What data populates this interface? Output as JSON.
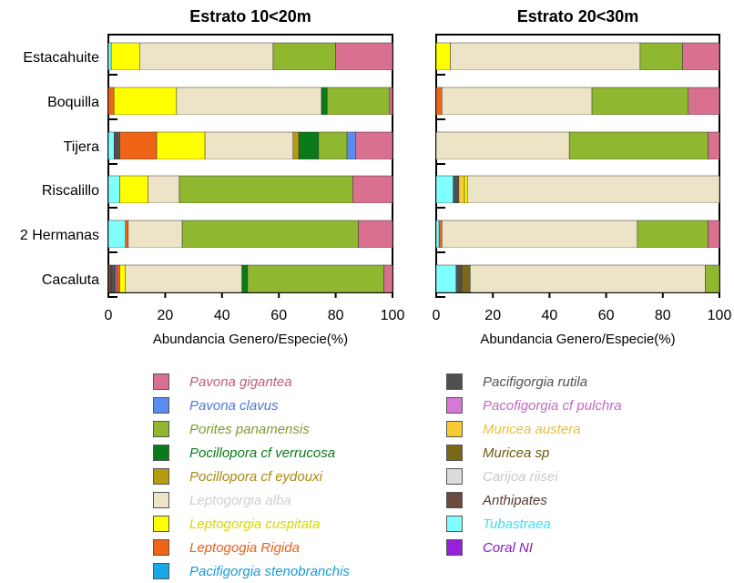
{
  "chart_data": [
    {
      "type": "bar",
      "orientation": "horizontal",
      "stacked": true,
      "title": "Estrato 10<20m",
      "xlabel": "Abundancia Genero/Especie(%)",
      "ylabel": "",
      "xlim": [
        0,
        100
      ],
      "xticks": [
        "0",
        "20",
        "40",
        "60",
        "80",
        "100"
      ],
      "categories": [
        "Estacahuite",
        "Boquilla",
        "Tijera",
        "Riscalillo",
        "2 Hermanas",
        "Cacaluta"
      ],
      "series": [
        {
          "name": "Tubastraea",
          "values": [
            1,
            0,
            2,
            4,
            6,
            0
          ]
        },
        {
          "name": "Anthipates",
          "values": [
            0,
            0,
            0,
            0,
            0,
            1
          ]
        },
        {
          "name": "Pacifigorgia rutila",
          "values": [
            0,
            0,
            2,
            0,
            0,
            1.5
          ]
        },
        {
          "name": "Pacofigorgia cf pulchra",
          "values": [
            0,
            0,
            0,
            0,
            0,
            0.5
          ]
        },
        {
          "name": "Leptogogia Rigida",
          "values": [
            0,
            2,
            13,
            0,
            1,
            1
          ]
        },
        {
          "name": "Leptogorgia cuspitata",
          "values": [
            10,
            22,
            17,
            10,
            0,
            2
          ]
        },
        {
          "name": "Leptogorgia alba",
          "values": [
            47,
            51,
            31,
            11,
            19,
            41
          ]
        },
        {
          "name": "Pocillopora cf eydouxi",
          "values": [
            0,
            0,
            2,
            0,
            0,
            0
          ]
        },
        {
          "name": "Pocillopora cf verrucosa",
          "values": [
            0,
            2,
            7,
            0,
            0,
            2
          ]
        },
        {
          "name": "Porites panamensis",
          "values": [
            22,
            22,
            10,
            61,
            62,
            48
          ]
        },
        {
          "name": "Pavona clavus",
          "values": [
            0,
            0,
            3,
            0,
            0,
            0
          ]
        },
        {
          "name": "Pavona gigantea",
          "values": [
            20,
            1,
            13,
            14,
            12,
            3
          ]
        }
      ]
    },
    {
      "type": "bar",
      "orientation": "horizontal",
      "stacked": true,
      "title": "Estrato 20<30m",
      "xlabel": "Abundancia Genero/Especie(%)",
      "ylabel": "",
      "xlim": [
        0,
        100
      ],
      "xticks": [
        "0",
        "20",
        "40",
        "60",
        "80",
        "100"
      ],
      "categories": [
        "Estacahuite",
        "Boquilla",
        "Tijera",
        "Riscalillo",
        "2 Hermanas",
        "Cacaluta"
      ],
      "series": [
        {
          "name": "Tubastraea",
          "values": [
            0,
            0,
            0,
            6,
            1,
            7
          ]
        },
        {
          "name": "Anthipates",
          "values": [
            0,
            0,
            0,
            0,
            0,
            0
          ]
        },
        {
          "name": "Pacifigorgia rutila",
          "values": [
            0,
            0,
            0,
            2,
            0,
            2
          ]
        },
        {
          "name": "Muricea sp",
          "values": [
            0,
            0,
            0,
            0,
            0,
            3
          ]
        },
        {
          "name": "Muricea austera",
          "values": [
            0,
            0,
            0,
            2,
            0,
            0
          ]
        },
        {
          "name": "Leptogogia Rigida",
          "values": [
            0,
            2,
            0,
            0,
            1,
            0
          ]
        },
        {
          "name": "Leptogorgia cuspitata",
          "values": [
            5,
            0,
            0,
            1,
            0,
            0
          ]
        },
        {
          "name": "Leptogorgia alba",
          "values": [
            67,
            53,
            47,
            89,
            69,
            83
          ]
        },
        {
          "name": "Porites panamensis",
          "values": [
            15,
            34,
            49,
            0,
            25,
            5
          ]
        },
        {
          "name": "Pavona gigantea",
          "values": [
            13,
            11,
            4,
            0,
            4,
            0
          ]
        }
      ]
    }
  ],
  "legend": {
    "left": [
      {
        "label": "Pavona gigantea",
        "color": "#d9708f"
      },
      {
        "label": "Pavona clavus",
        "color": "#5b8cf0"
      },
      {
        "label": "Porites panamensis",
        "color": "#8fb830"
      },
      {
        "label": "Pocillopora cf verrucosa",
        "color": "#0a7a1a"
      },
      {
        "label": "Pocillopora cf eydouxi",
        "color": "#b89a10"
      },
      {
        "label": "Leptogorgia alba",
        "color": "#ede4c8"
      },
      {
        "label": "Leptogorgia cuspitata",
        "color": "#ffff00"
      },
      {
        "label": "Leptogogia Rigida",
        "color": "#f06418"
      },
      {
        "label": "Pacifigorgia stenobranchis",
        "color": "#18a8e8"
      }
    ],
    "right": [
      {
        "label": "Pacifigorgia rutila",
        "color": "#505050"
      },
      {
        "label": "Pacofigorgia cf pulchra",
        "color": "#d678d6"
      },
      {
        "label": "Muricea austera",
        "color": "#f8cc30"
      },
      {
        "label": "Muricea sp",
        "color": "#7a6818"
      },
      {
        "label": "Carijoa riisei",
        "color": "#dcdcdc"
      },
      {
        "label": "Anthipates",
        "color": "#6b4a40"
      },
      {
        "label": "Tubastraea",
        "color": "#80ffff"
      },
      {
        "label": "Coral NI",
        "color": "#9820d8"
      }
    ]
  },
  "label_colors": {
    "Pavona gigantea": "#c25a80",
    "Pavona clavus": "#4a78d8",
    "Porites panamensis": "#7f9c2c",
    "Pocillopora cf verrucosa": "#0a7a1a",
    "Pocillopora cf eydouxi": "#a88a10",
    "Leptogorgia alba": "#cfcfcf",
    "Leptogorgia cuspitata": "#d8d800",
    "Leptogogia Rigida": "#e86018",
    "Pacifigorgia stenobranchis": "#1a9ad8",
    "Pacifigorgia rutila": "#505050",
    "Pacofigorgia cf pulchra": "#c468c4",
    "Muricea austera": "#e8c040",
    "Muricea sp": "#6a5a10",
    "Carijoa riisei": "#c8c8c8",
    "Anthipates": "#5a3a30",
    "Tubastraea": "#40e0f0",
    "Coral NI": "#8818c8"
  }
}
